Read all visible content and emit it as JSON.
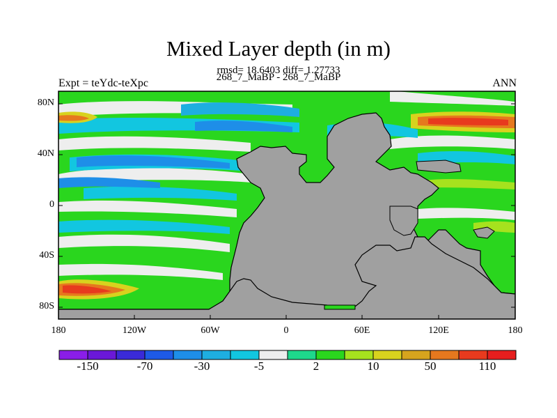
{
  "title": "Mixed Layer depth (in m)",
  "stats": "rmsd= 18.6403 diff= 1.27733",
  "experiment_pair": "268_7_MaBP - 268_7_MaBP",
  "experiment": "Expt = teYdc-teXpc",
  "season": "ANN",
  "lat_labels": [
    "80N",
    "40N",
    "0",
    "40S",
    "80S"
  ],
  "lon_labels": [
    "180",
    "120W",
    "60W",
    "0",
    "60E",
    "120E",
    "180"
  ],
  "colorbar": {
    "labels": [
      "-150",
      "-70",
      "-30",
      "-5",
      "2",
      "10",
      "50",
      "110"
    ],
    "colors": [
      "#8a1ee8",
      "#6a18d8",
      "#3a2ad8",
      "#1e5ae6",
      "#1e8ee8",
      "#1eaee0",
      "#12c6e0",
      "#eeeeee",
      "#1ed88c",
      "#2ad61e",
      "#a6e21e",
      "#d8d21e",
      "#d6a41e",
      "#e6781e",
      "#e83a1e",
      "#e61e1e"
    ]
  },
  "land_color": "#a0a0a0"
}
